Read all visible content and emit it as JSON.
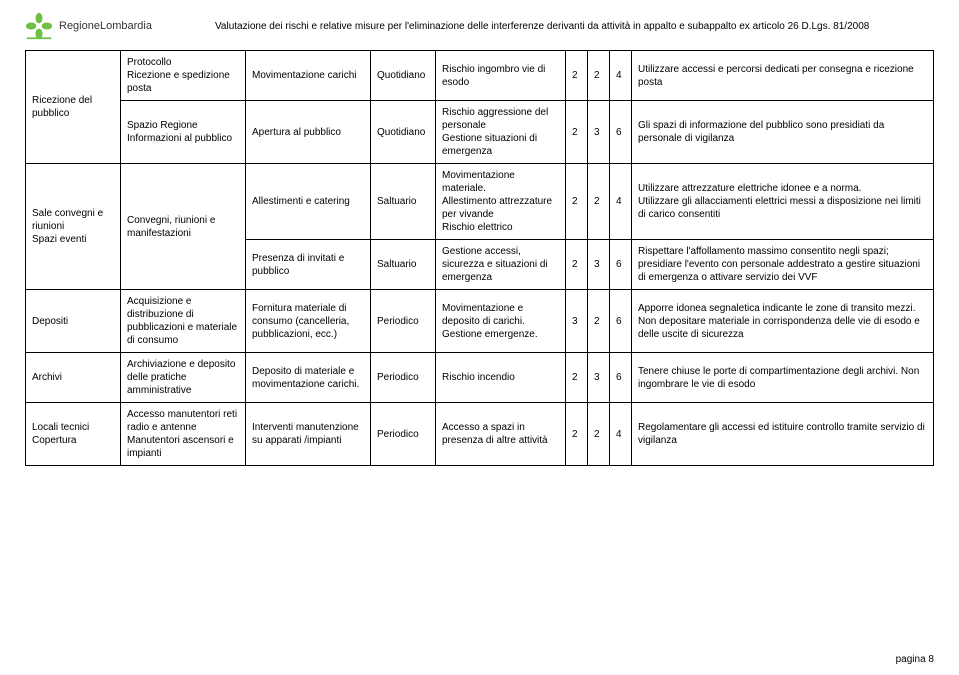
{
  "header": {
    "org_name": "RegioneLombardia",
    "title": "Valutazione dei rischi e relative misure per l'eliminazione delle interferenze derivanti da attività in appalto e subappalto ex articolo 26 D.Lgs. 81/2008"
  },
  "footer": {
    "page": "pagina 8"
  },
  "logo": {
    "petal_color": "#6fbf44",
    "bar_color": "#6fbf44"
  },
  "rows": [
    {
      "area": "Ricezione del pubblico",
      "activity": "Protocollo\nRicezione e spedizione posta",
      "task": "Movimentazione carichi",
      "freq": "Quotidiano",
      "risk": "Rischio ingombro vie di esodo",
      "n1": "2",
      "n2": "2",
      "n3": "4",
      "measure": "Utilizzare accessi e percorsi dedicati per consegna e ricezione posta"
    },
    {
      "activity": "Spazio Regione Informazioni al pubblico",
      "task": "Apertura al pubblico",
      "freq": "Quotidiano",
      "risk": "Rischio aggressione del personale\nGestione situazioni di emergenza",
      "n1": "2",
      "n2": "3",
      "n3": "6",
      "measure": "Gli spazi di informazione del pubblico sono presidiati da personale di vigilanza"
    },
    {
      "area": "Sale convegni e riunioni\nSpazi eventi",
      "activity": "Convegni, riunioni e manifestazioni",
      "task": "Allestimenti e catering",
      "freq": "Saltuario",
      "risk": "Movimentazione materiale.\nAllestimento attrezzature per vivande\nRischio elettrico",
      "n1": "2",
      "n2": "2",
      "n3": "4",
      "measure": "Utilizzare attrezzature elettriche idonee e a norma.\nUtilizzare gli allacciamenti elettrici messi a disposizione nei limiti di carico consentiti"
    },
    {
      "task": "Presenza di invitati e pubblico",
      "freq": "Saltuario",
      "risk": "Gestione accessi, sicurezza e  situazioni di emergenza",
      "n1": "2",
      "n2": "3",
      "n3": "6",
      "measure": "Rispettare l'affollamento massimo consentito negli spazi; presidiare l'evento con personale addestrato a gestire situazioni di emergenza o attivare servizio dei VVF"
    },
    {
      "area": "Depositi",
      "activity": "Acquisizione e distribuzione di pubblicazioni e materiale di consumo",
      "task": "Fornitura materiale di consumo (cancelleria, pubblicazioni, ecc.)",
      "freq": "Periodico",
      "risk": "Movimentazione e deposito di carichi.\nGestione emergenze.",
      "n1": "3",
      "n2": "2",
      "n3": "6",
      "measure": "Apporre idonea segnaletica indicante le zone di transito mezzi.\nNon depositare materiale in corrispondenza delle vie di esodo e delle uscite di sicurezza"
    },
    {
      "area": "Archivi",
      "activity": "Archiviazione e deposito delle pratiche amministrative",
      "task": "Deposito di materiale e movimentazione carichi.",
      "freq": "Periodico",
      "risk": "Rischio incendio",
      "n1": "2",
      "n2": "3",
      "n3": "6",
      "measure": "Tenere chiuse le porte di compartimentazione degli archivi. Non ingombrare le vie di esodo"
    },
    {
      "area": "Locali tecnici Copertura",
      "activity": "Accesso manutentori reti radio e antenne\nManutentori ascensori e impianti",
      "task": "Interventi manutenzione su apparati /impianti",
      "freq": "Periodico",
      "risk": "Accesso a spazi in presenza di altre attività",
      "n1": "2",
      "n2": "2",
      "n3": "4",
      "measure": "Regolamentare gli accessi ed istituire controllo tramite servizio di vigilanza"
    }
  ]
}
